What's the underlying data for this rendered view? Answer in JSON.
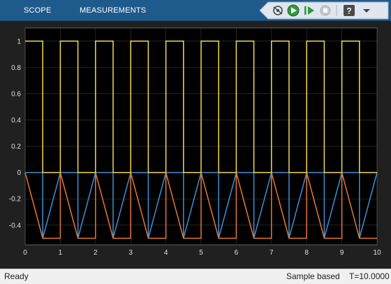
{
  "toolstrip": {
    "tabs": [
      {
        "label": "SCOPE"
      },
      {
        "label": "MEASUREMENTS"
      }
    ],
    "quick_access": [
      {
        "icon": "stepback-icon"
      },
      {
        "icon": "run-icon"
      },
      {
        "icon": "step-forward-icon"
      },
      {
        "icon": "stop-icon"
      },
      {
        "icon": "help-icon"
      },
      {
        "icon": "dropdown-icon"
      }
    ]
  },
  "status": {
    "state": "Ready",
    "mode": "Sample based",
    "time": "T=10.0000"
  },
  "colors": {
    "yellow": "#edb120",
    "blue": "#0072bd",
    "orange": "#d95319"
  },
  "chart_data": {
    "type": "line",
    "xlim": [
      0,
      10
    ],
    "ylim": [
      -0.55,
      1.1
    ],
    "x_ticks": [
      "0",
      "1",
      "2",
      "3",
      "4",
      "5",
      "6",
      "7",
      "8",
      "9",
      "10"
    ],
    "y_ticks": [
      "1",
      "0.8",
      "0.6",
      "0.4",
      "0.2",
      "0",
      "-0.2",
      "-0.4"
    ],
    "y_tick_values": [
      1,
      0.8,
      0.6,
      0.4,
      0.2,
      0,
      -0.2,
      -0.4
    ],
    "grid": true,
    "series": [
      {
        "color": "#f5d94a",
        "x": [
          0,
          0.5,
          0.5,
          1.0,
          1.0,
          1.5,
          1.5,
          2.0,
          2.0,
          2.5,
          2.5,
          3.0,
          3.0,
          3.5,
          3.5,
          4.0,
          4.0,
          4.5,
          4.5,
          5.0,
          5.0,
          5.5,
          5.5,
          6.0,
          6.0,
          6.5,
          6.5,
          7.0,
          7.0,
          7.5,
          7.5,
          8.0,
          8.0,
          8.5,
          8.5,
          9.0,
          9.0,
          9.5,
          9.5,
          10
        ],
        "y": [
          1,
          1,
          0,
          0,
          1,
          1,
          0,
          0,
          1,
          1,
          0,
          0,
          1,
          1,
          0,
          0,
          1,
          1,
          0,
          0,
          1,
          1,
          0,
          0,
          1,
          1,
          0,
          0,
          1,
          1,
          0,
          0,
          1,
          1,
          0,
          0,
          1,
          1,
          0,
          0
        ]
      },
      {
        "color": "#3d8fd9",
        "x": [
          0,
          0.5,
          0.5,
          1.0,
          1.0,
          1.5,
          1.5,
          2.0,
          2.0,
          2.5,
          2.5,
          3.0,
          3.0,
          3.5,
          3.5,
          4.0,
          4.0,
          4.5,
          4.5,
          5.0,
          5.0,
          5.5,
          5.5,
          6.0,
          6.0,
          6.5,
          6.5,
          7.0,
          7.0,
          7.5,
          7.5,
          8.0,
          8.0,
          8.5,
          8.5,
          9.0,
          9.0,
          9.5,
          9.5,
          10
        ],
        "y": [
          0,
          0,
          -0.5,
          0,
          0,
          0,
          -0.5,
          0,
          0,
          0,
          -0.5,
          0,
          0,
          0,
          -0.5,
          0,
          0,
          0,
          -0.5,
          0,
          0,
          0,
          -0.5,
          0,
          0,
          0,
          -0.5,
          0,
          0,
          0,
          -0.5,
          0,
          0,
          0,
          -0.5,
          0,
          0,
          0,
          -0.5,
          0
        ]
      },
      {
        "color": "#e87830",
        "x": [
          0,
          0.5,
          1.0,
          1.0,
          1.5,
          2.0,
          2.0,
          2.5,
          3.0,
          3.0,
          3.5,
          4.0,
          4.0,
          4.5,
          5.0,
          5.0,
          5.5,
          6.0,
          6.0,
          6.5,
          7.0,
          7.0,
          7.5,
          8.0,
          8.0,
          8.5,
          9.0,
          9.0,
          9.5,
          10
        ],
        "y": [
          0,
          -0.5,
          -0.5,
          0,
          -0.5,
          -0.5,
          0,
          -0.5,
          -0.5,
          0,
          -0.5,
          -0.5,
          0,
          -0.5,
          -0.5,
          0,
          -0.5,
          -0.5,
          0,
          -0.5,
          -0.5,
          0,
          -0.5,
          -0.5,
          0,
          -0.5,
          -0.5,
          0,
          -0.5,
          -0.5
        ]
      }
    ]
  }
}
